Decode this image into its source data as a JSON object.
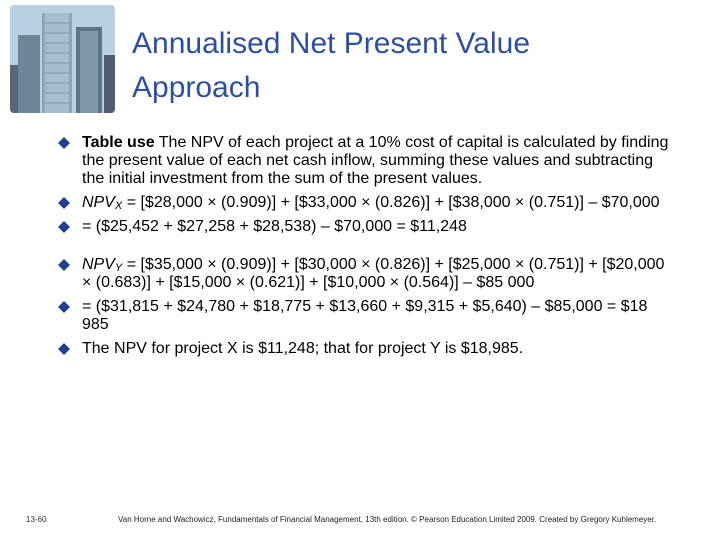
{
  "slide": {
    "title_line1": "Annualised Net Present  Value",
    "title_line2": "Approach",
    "bullets": [
      {
        "lead": "Table use",
        "text": " The NPV of each project at a 10% cost of capital is calculated by finding the present value of each net cash inflow, summing these values and subtracting the initial investment from the sum of the present values."
      },
      {
        "npv": "NPV",
        "sub": "X",
        "text": " = [$28,000 × (0.909)] + [$33,000 × (0.826)] + [$38,000 × (0.751)] – $70,000"
      },
      {
        "text": "= ($25,452 + $27,258 + $28,538) – $70,000  = $11,248"
      },
      {
        "npv": "NPV",
        "sub": "Y",
        "text": " = [$35,000 × (0.909)] + [$30,000 × (0.826)] + [$25,000 × (0.751)] +  [$20,000 × (0.683)] + [$15,000 × (0.621)] + [$10,000 × (0.564)] – $85 000"
      },
      {
        "text": "= ($31,815 + $24,780 + $18,775 + $13,660 + $9,315 + $5,640) – $85,000  =  $18 985"
      },
      {
        "text": "The NPV for project X is $11,248; that for project Y is $18,985."
      }
    ],
    "slide_number": "13-60",
    "footer": "Van Horne and Wachowicz, Fundamentals of Financial Management, 13th edition. © Pearson Education Limited 2009. Created by Gregory  Kuhlemeyer."
  },
  "colors": {
    "title": "#2e4f9c",
    "bullet": "#1f3f8f"
  },
  "icons": {
    "bullet": "diamond-bullet-icon",
    "photo": "skyscraper-photo"
  }
}
